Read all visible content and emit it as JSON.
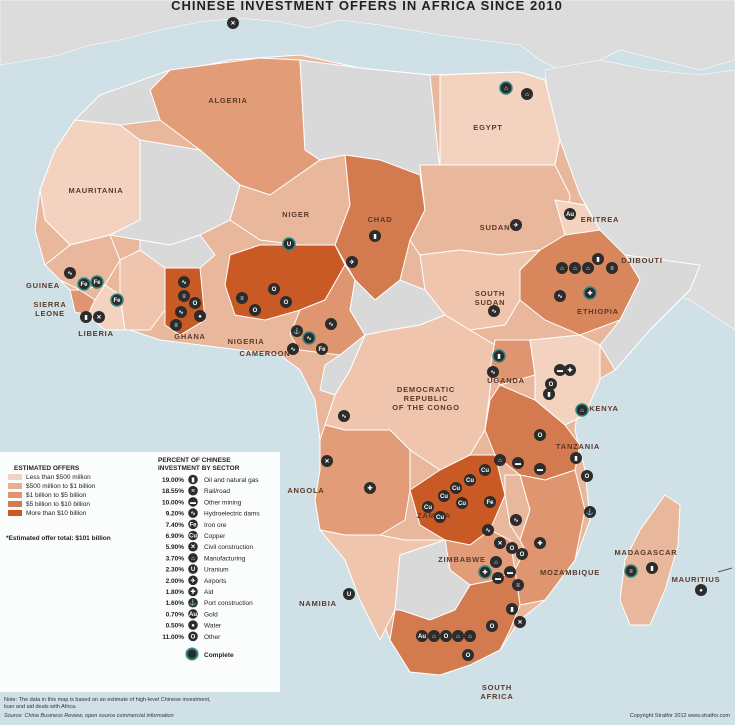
{
  "title": "CHINESE INVESTMENT OFFERS IN AFRICA SINCE 2010",
  "countries": {
    "algeria": "ALGERIA",
    "egypt": "EGYPT",
    "mauritania": "MAURITANIA",
    "niger": "NIGER",
    "chad": "CHAD",
    "sudan": "SUDAN",
    "eritrea": "ERITREA",
    "djibouti": "DJIBOUTI",
    "guinea": "GUINEA",
    "sierra_leone_1": "SIERRA",
    "sierra_leone_2": "LEONE",
    "liberia": "LIBERIA",
    "ghana": "GHANA",
    "nigeria": "NIGERIA",
    "cameroon": "CAMEROON",
    "south_sudan_1": "SOUTH",
    "south_sudan_2": "SUDAN",
    "ethiopia": "ETHIOPIA",
    "drc_1": "DEMOCRATIC",
    "drc_2": "REPUBLIC",
    "drc_3": "OF THE CONGO",
    "uganda": "UGANDA",
    "kenya": "KENYA",
    "tanzania": "TANZANIA",
    "angola": "ANGOLA",
    "zambia": "ZAMBIA",
    "zimbabwe": "ZIMBABWE",
    "mozambique": "MOZAMBIQUE",
    "madagascar": "MADAGASCAR",
    "mauritius": "MAURITIUS",
    "namibia": "NAMIBIA",
    "south_africa_1": "SOUTH",
    "south_africa_2": "AFRICA"
  },
  "legend_offers": {
    "heading": "ESTIMATED OFFERS",
    "items": [
      {
        "label": "Less than $500 million",
        "color": "#f3d3c0"
      },
      {
        "label": "$500 million to $1 billion",
        "color": "#e8af8f"
      },
      {
        "label": "$1 billion to $5 billion",
        "color": "#df9670"
      },
      {
        "label": "$5 billion to $10 billion",
        "color": "#d47a4f"
      },
      {
        "label": "More than $10 billion",
        "color": "#c95a25"
      }
    ],
    "total": "*Estimated offer total: $101 billion"
  },
  "legend_sectors": {
    "heading_1": "PERCENT OF CHINESE",
    "heading_2": "INVESTMENT BY SECTOR",
    "items": [
      {
        "pct": "19.00%",
        "label": "Oil and natural gas",
        "icon": "oil-barrel-icon",
        "glyph": "▮"
      },
      {
        "pct": "18.55%",
        "label": "Rail/road",
        "icon": "rail-road-icon",
        "glyph": "≡"
      },
      {
        "pct": "10.00%",
        "label": "Other mining",
        "icon": "mining-icon",
        "glyph": "▬"
      },
      {
        "pct": "9.20%",
        "label": "Hydroelectric dams",
        "icon": "dam-icon",
        "glyph": "∿"
      },
      {
        "pct": "7.40%",
        "label": "Iron ore",
        "icon": "iron-ore-icon",
        "glyph": "Fe"
      },
      {
        "pct": "6.90%",
        "label": "Copper",
        "icon": "copper-icon",
        "glyph": "Cu"
      },
      {
        "pct": "5.90%",
        "label": "Civil construction",
        "icon": "construction-icon",
        "glyph": "✕"
      },
      {
        "pct": "3.70%",
        "label": "Manufacturing",
        "icon": "factory-icon",
        "glyph": "⌂"
      },
      {
        "pct": "2.30%",
        "label": "Uranium",
        "icon": "uranium-icon",
        "glyph": "U"
      },
      {
        "pct": "2.00%",
        "label": "Airports",
        "icon": "airplane-icon",
        "glyph": "✈"
      },
      {
        "pct": "1.80%",
        "label": "Aid",
        "icon": "aid-cross-icon",
        "glyph": "✚"
      },
      {
        "pct": "1.60%",
        "label": "Port construction",
        "icon": "anchor-icon",
        "glyph": "⚓"
      },
      {
        "pct": "0.70%",
        "label": "Gold",
        "icon": "gold-icon",
        "glyph": "Au"
      },
      {
        "pct": "0.50%",
        "label": "Water",
        "icon": "water-drop-icon",
        "glyph": "●"
      },
      {
        "pct": "11.00%",
        "label": "Other",
        "icon": "other-icon",
        "glyph": "O"
      }
    ],
    "complete": "Complete"
  },
  "note": {
    "line1": "Note: The data in this map is based on an estimate of high-level Chinese investment,",
    "line2": "loan and aid deals with Africa.",
    "source": "Source: China Business Review, open source commercial information"
  },
  "copyright": "Copyright Stratfor 2012   www.stratfor.com",
  "colors": {
    "sea": "#cfe0e6",
    "other_land": "#dcdcdc",
    "icon_fill": "#2c2c2c",
    "complete_ring": "#2a8a86"
  }
}
